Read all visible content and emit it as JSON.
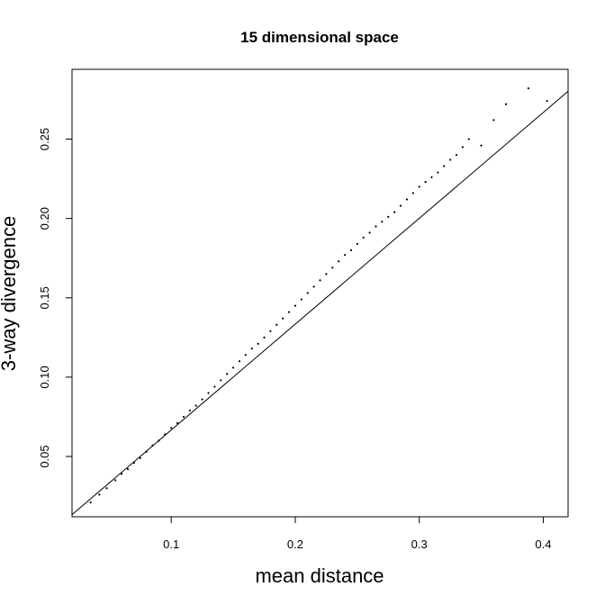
{
  "chart_data": {
    "type": "scatter",
    "title": "15 dimensional space",
    "xlabel": "mean distance",
    "ylabel": "3-way divergence",
    "xlim": [
      0.02,
      0.42
    ],
    "ylim": [
      0.012,
      0.294
    ],
    "x_ticks": [
      {
        "value": 0.1,
        "label": "0.1"
      },
      {
        "value": 0.2,
        "label": "0.2"
      },
      {
        "value": 0.3,
        "label": "0.3"
      },
      {
        "value": 0.4,
        "label": "0.4"
      }
    ],
    "y_ticks": [
      {
        "value": 0.05,
        "label": "0.05"
      },
      {
        "value": 0.1,
        "label": "0.10"
      },
      {
        "value": 0.15,
        "label": "0.15"
      },
      {
        "value": 0.2,
        "label": "0.20"
      },
      {
        "value": 0.25,
        "label": "0.25"
      }
    ],
    "reference_line": {
      "slope": 0.667,
      "intercept": 0.0
    },
    "grid": false,
    "legend": "none",
    "point_color": "#000000",
    "series": [
      {
        "values": [
          [
            0.035,
            0.021
          ],
          [
            0.042,
            0.026
          ],
          [
            0.048,
            0.03
          ],
          [
            0.055,
            0.035
          ],
          [
            0.06,
            0.039
          ],
          [
            0.065,
            0.042
          ],
          [
            0.07,
            0.046
          ],
          [
            0.075,
            0.049
          ],
          [
            0.08,
            0.053
          ],
          [
            0.085,
            0.057
          ],
          [
            0.09,
            0.06
          ],
          [
            0.095,
            0.064
          ],
          [
            0.1,
            0.068
          ],
          [
            0.105,
            0.071
          ],
          [
            0.11,
            0.075
          ],
          [
            0.115,
            0.079
          ],
          [
            0.12,
            0.082
          ],
          [
            0.125,
            0.086
          ],
          [
            0.13,
            0.09
          ],
          [
            0.135,
            0.094
          ],
          [
            0.14,
            0.098
          ],
          [
            0.145,
            0.102
          ],
          [
            0.15,
            0.106
          ],
          [
            0.155,
            0.11
          ],
          [
            0.16,
            0.114
          ],
          [
            0.165,
            0.118
          ],
          [
            0.17,
            0.121
          ],
          [
            0.175,
            0.125
          ],
          [
            0.18,
            0.129
          ],
          [
            0.185,
            0.133
          ],
          [
            0.19,
            0.137
          ],
          [
            0.195,
            0.141
          ],
          [
            0.2,
            0.145
          ],
          [
            0.205,
            0.149
          ],
          [
            0.21,
            0.153
          ],
          [
            0.215,
            0.157
          ],
          [
            0.22,
            0.161
          ],
          [
            0.225,
            0.165
          ],
          [
            0.23,
            0.169
          ],
          [
            0.235,
            0.173
          ],
          [
            0.24,
            0.177
          ],
          [
            0.245,
            0.18
          ],
          [
            0.25,
            0.184
          ],
          [
            0.255,
            0.188
          ],
          [
            0.26,
            0.191
          ],
          [
            0.265,
            0.195
          ],
          [
            0.27,
            0.198
          ],
          [
            0.275,
            0.201
          ],
          [
            0.28,
            0.204
          ],
          [
            0.285,
            0.208
          ],
          [
            0.29,
            0.212
          ],
          [
            0.295,
            0.216
          ],
          [
            0.3,
            0.22
          ],
          [
            0.305,
            0.223
          ],
          [
            0.31,
            0.226
          ],
          [
            0.315,
            0.229
          ],
          [
            0.32,
            0.233
          ],
          [
            0.325,
            0.237
          ],
          [
            0.33,
            0.24
          ],
          [
            0.335,
            0.245
          ],
          [
            0.34,
            0.25
          ],
          [
            0.35,
            0.246
          ],
          [
            0.36,
            0.262
          ],
          [
            0.37,
            0.272
          ],
          [
            0.388,
            0.282
          ],
          [
            0.403,
            0.274
          ]
        ]
      }
    ]
  }
}
